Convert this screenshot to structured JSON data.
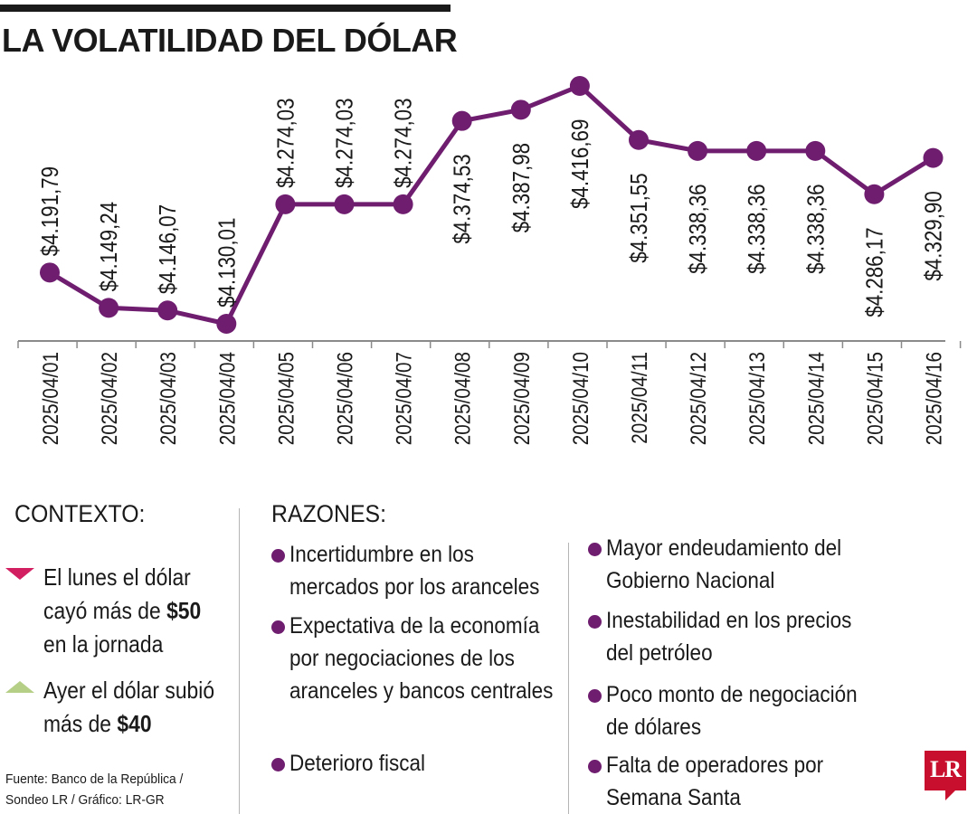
{
  "title": "LA VOLATILIDAD DEL DÓLAR",
  "colors": {
    "line": "#6e1d6f",
    "down": "#d21f62",
    "up": "#b6cf87",
    "logo": "#c8102e"
  },
  "chart_data": {
    "type": "line",
    "title": "LA VOLATILIDAD DEL DÓLAR",
    "x": [
      "2025/04/01",
      "2025/04/02",
      "2025/04/03",
      "2025/04/04",
      "2025/04/05",
      "2025/04/06",
      "2025/04/07",
      "2025/04/08",
      "2025/04/09",
      "2025/04/10",
      "2025/04/11",
      "2025/04/12",
      "2025/04/13",
      "2025/04/14",
      "2025/04/15",
      "2025/04/16"
    ],
    "values": [
      4191.79,
      4149.24,
      4146.07,
      4130.01,
      4274.03,
      4274.03,
      4274.03,
      4374.53,
      4387.98,
      4416.69,
      4351.55,
      4338.36,
      4338.36,
      4338.36,
      4286.17,
      4329.9
    ],
    "labels": [
      "$4.191,79",
      "$4.149,24",
      "$4.146,07",
      "$4.130,01",
      "$4.274,03",
      "$4.274,03",
      "$4.274,03",
      "$4.374,53",
      "$4.387,98",
      "$4.416,69",
      "$4.351,55",
      "$4.338,36",
      "$4.338,36",
      "$4.338,36",
      "$4.286,17",
      "$4.329,90"
    ],
    "grid": false,
    "legend": "none"
  },
  "contexto": {
    "heading": "CONTEXTO:",
    "items": [
      {
        "icon": "triangle-down-icon",
        "text": "El lunes el dólar cayó más de ",
        "bold": "$50",
        "after": " en la jornada"
      },
      {
        "icon": "triangle-up-icon",
        "text": "Ayer el dólar subió más de ",
        "bold": "$40",
        "after": ""
      }
    ]
  },
  "razones": {
    "heading": "RAZONES:",
    "left": [
      "Incertidumbre en los mercados por los aranceles",
      "Expectativa de la economía por negociaciones de los aranceles y bancos centrales",
      "Deterioro fiscal"
    ],
    "right": [
      "Mayor endeudamiento del Gobierno Nacional",
      "Inestabilidad en los precios del petróleo",
      "Poco monto de negociación de dólares",
      "Falta de operadores por Semana Santa"
    ]
  },
  "source": "Fuente: Banco de la República / Sondeo LR / Gráfico: LR-GR",
  "logo": "LR"
}
